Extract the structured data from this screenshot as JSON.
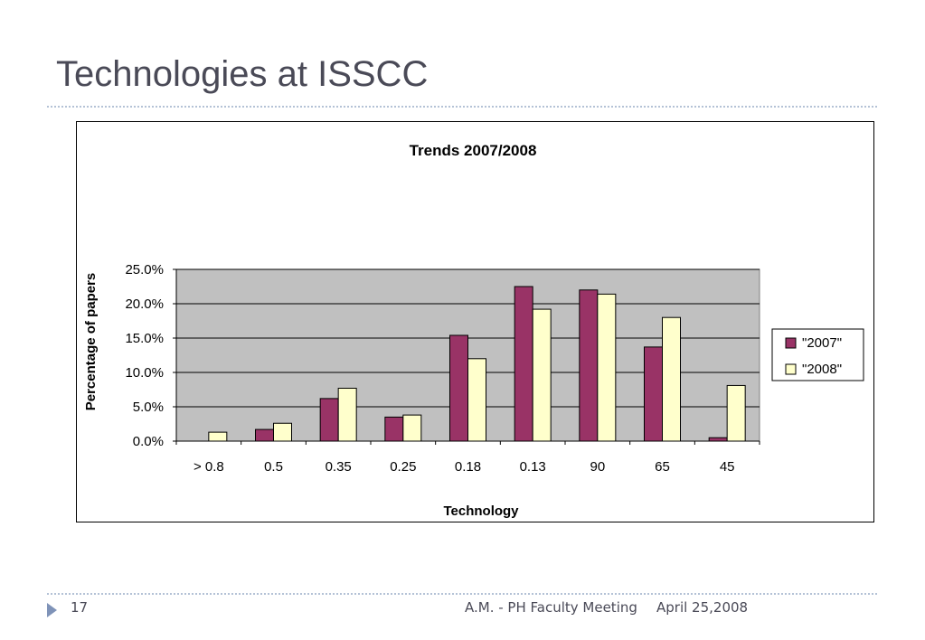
{
  "slide": {
    "title": "Technologies at ISSCC",
    "page_number": "17",
    "footer_text": "A.M. - PH Faculty Meeting",
    "footer_date": "April 25,2008"
  },
  "colors": {
    "series_2007": "#993366",
    "series_2008": "#ffffcc",
    "plot_area": "#c0c0c0",
    "title_text": "#4a4a57"
  },
  "chart_data": {
    "type": "bar",
    "title": "Trends 2007/2008",
    "xlabel": "Technology",
    "ylabel": "Percentage of papers",
    "categories": [
      "> 0.8",
      "0.5",
      "0.35",
      "0.25",
      "0.18",
      "0.13",
      "90",
      "65",
      "45"
    ],
    "series": [
      {
        "name": "\"2007\"",
        "values": [
          0.0,
          1.7,
          6.2,
          3.5,
          15.4,
          22.5,
          22.0,
          13.7,
          0.5
        ]
      },
      {
        "name": "\"2008\"",
        "values": [
          1.3,
          2.6,
          7.7,
          3.8,
          12.0,
          19.2,
          21.4,
          18.0,
          8.1
        ]
      }
    ],
    "ylim": [
      0,
      25
    ],
    "yticks": [
      "0.0%",
      "5.0%",
      "10.0%",
      "15.0%",
      "20.0%",
      "25.0%"
    ],
    "grid": true,
    "legend": "right"
  }
}
